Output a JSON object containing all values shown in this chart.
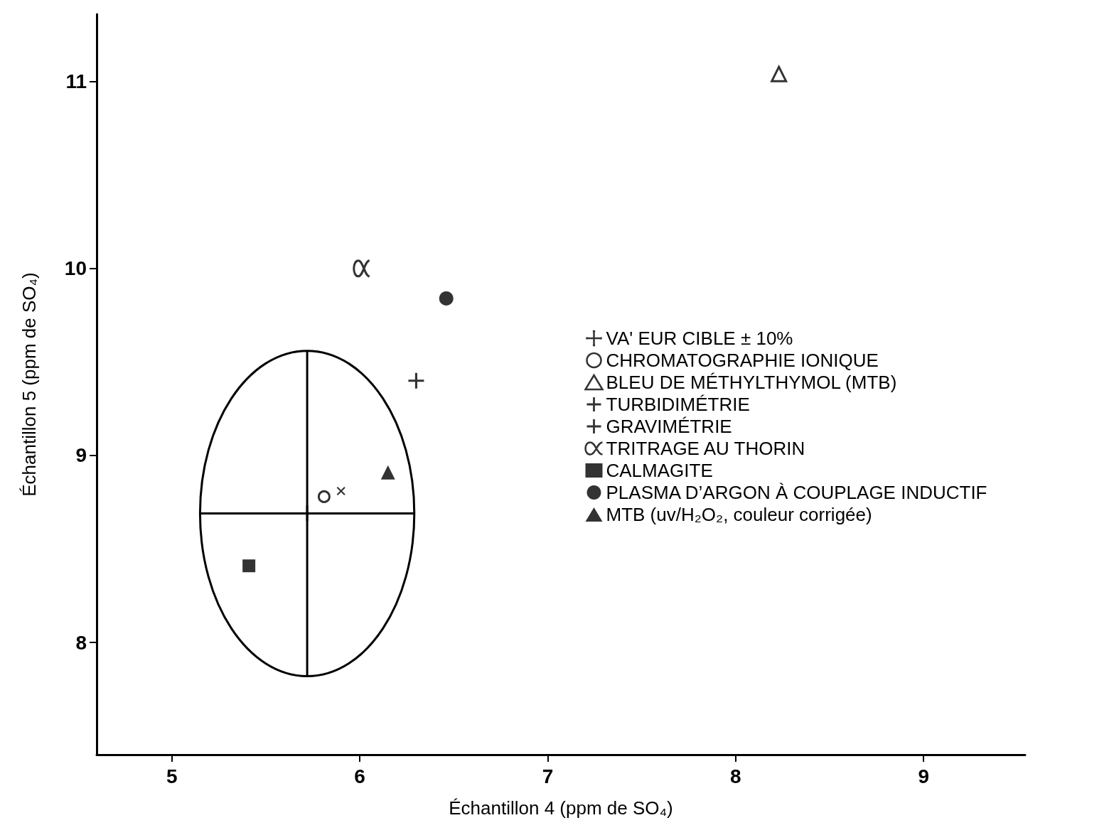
{
  "chart_data": {
    "type": "scatter",
    "xlabel": "Échantillon 4 (ppm de SO₄)",
    "ylabel": "Échantillon 5 (ppm de SO₄)",
    "xlim": [
      4.6,
      9.54
    ],
    "xticks": [
      5,
      6,
      7,
      8,
      9
    ],
    "ylim": [
      7.4,
      11.36
    ],
    "yticks": [
      8,
      9,
      10,
      11
    ],
    "grid": false,
    "legend": "right",
    "series": [
      {
        "name": "VA' EUR CIBLE ± 10%",
        "color": "#000000",
        "marker": "cross",
        "x": [
          5.72
        ],
        "values": [
          8.69
        ],
        "errors": [
          0.87
        ],
        "xerrors": [
          0.57
        ]
      },
      {
        "name": "CHROMATOGRAPHIE IONIQUE",
        "color": "#000000",
        "x": [
          5.81
        ],
        "values": [
          8.78
        ]
      },
      {
        "name": "BLEU DE MÉTHYLTHYMOL (MTB)",
        "color": "#000000",
        "x": [
          8.23
        ],
        "values": [
          11.04
        ]
      },
      {
        "name": "TURBIDIMÉTRIE",
        "color": "#000000",
        "x": [
          5.9
        ],
        "values": [
          8.81
        ]
      },
      {
        "name": "GRAVIMÉTRIE",
        "color": "#000000",
        "marker": "cross",
        "x": [
          6.3
        ],
        "values": [
          9.4
        ]
      },
      {
        "name": "TRITRAGE AU THORIN",
        "color": "#000000",
        "x": [
          6.01
        ],
        "values": [
          10.0
        ]
      },
      {
        "name": "CALMAGITE",
        "color": "#000000",
        "marker": "square",
        "x": [
          5.41
        ],
        "values": [
          8.41
        ]
      },
      {
        "name": "PLASMA D’ARGON À COUPLAGE INDUCTIF",
        "color": "#000000",
        "marker": "circle",
        "x": [
          6.46
        ],
        "values": [
          9.84
        ]
      },
      {
        "name": "MTB (uv/H₂O₂, couleur corrigée)",
        "color": "#000000",
        "marker": "triangle",
        "x": [
          6.15
        ],
        "values": [
          8.91
        ]
      }
    ]
  }
}
